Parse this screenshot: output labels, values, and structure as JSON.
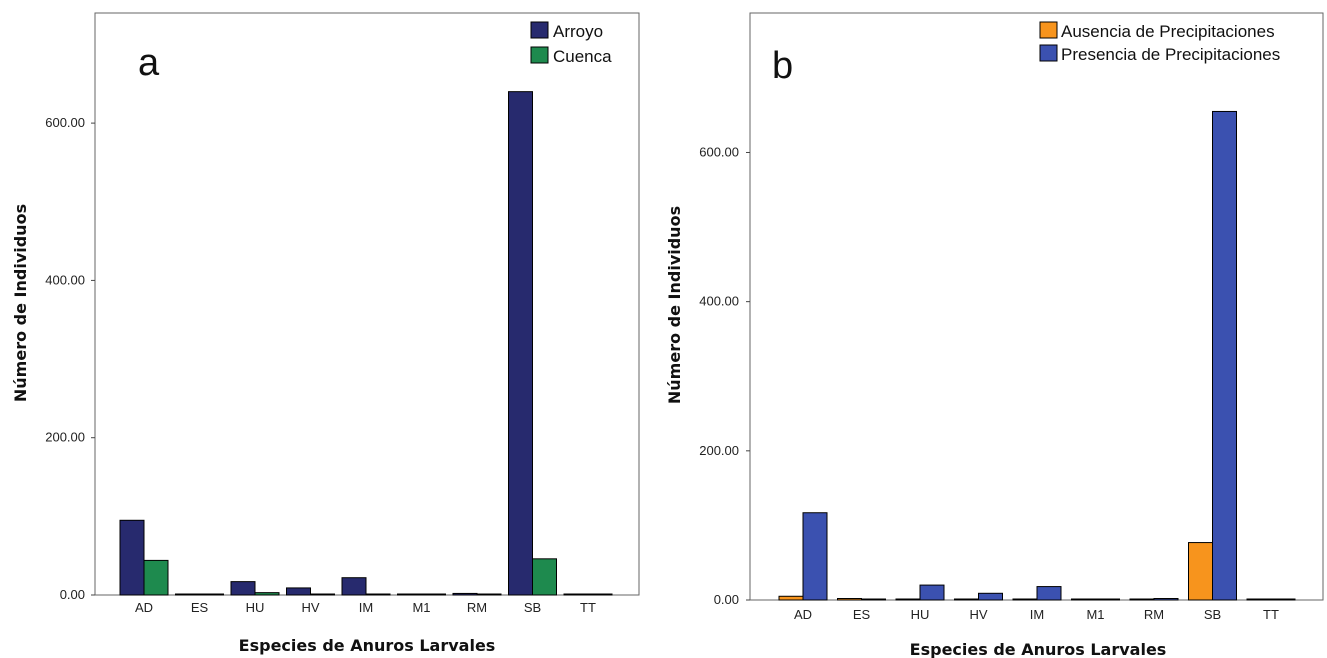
{
  "chart_data": [
    {
      "type": "bar",
      "panel_label": "a",
      "categories": [
        "AD",
        "ES",
        "HU",
        "HV",
        "IM",
        "M1",
        "RM",
        "SB",
        "TT"
      ],
      "series": [
        {
          "name": "Arroyo",
          "color": "#272a6e",
          "values": [
            95,
            1,
            17,
            9,
            22,
            1,
            2,
            640,
            1
          ]
        },
        {
          "name": "Cuenca",
          "color": "#1e8a4e",
          "values": [
            44,
            0,
            3,
            1,
            0,
            0,
            1,
            46,
            0
          ]
        }
      ],
      "yticks": [
        "0.00",
        "200.00",
        "400.00",
        "600.00"
      ],
      "ytick_values": [
        0,
        200,
        400,
        600
      ],
      "xlabel": "Especies de Anuros Larvales",
      "ylabel": "Número de Individuos",
      "ylim": [
        0,
        740
      ],
      "legend_position": "top-right",
      "grid": false
    },
    {
      "type": "bar",
      "panel_label": "b",
      "categories": [
        "AD",
        "ES",
        "HU",
        "HV",
        "IM",
        "M1",
        "RM",
        "SB",
        "TT"
      ],
      "series": [
        {
          "name": "Ausencia de Precipitaciones",
          "color": "#f7941d",
          "values": [
            5,
            2,
            0,
            0,
            0,
            0,
            0,
            77,
            0
          ]
        },
        {
          "name": "Presencia de Precipitaciones",
          "color": "#3b51b0",
          "values": [
            117,
            0,
            20,
            9,
            18,
            1,
            2,
            655,
            1
          ]
        }
      ],
      "yticks": [
        "0.00",
        "200.00",
        "400.00",
        "600.00"
      ],
      "ytick_values": [
        0,
        200,
        400,
        600
      ],
      "xlabel": "Especies de Anuros Larvales",
      "ylabel": "Número de Individuos",
      "ylim": [
        0,
        787
      ],
      "legend_position": "top-right",
      "grid": false
    }
  ]
}
